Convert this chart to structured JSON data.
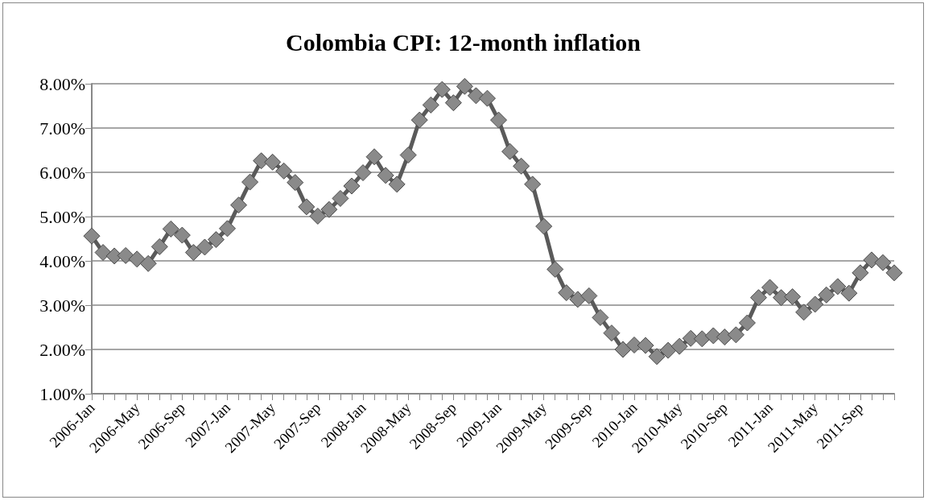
{
  "chart_data": {
    "type": "line",
    "title": "Colombia CPI: 12-month inflation",
    "categories": [
      "2006-Jan",
      null,
      null,
      null,
      "2006-May",
      null,
      null,
      null,
      "2006-Sep",
      null,
      null,
      null,
      "2007-Jan",
      null,
      null,
      null,
      "2007-May",
      null,
      null,
      null,
      "2007-Sep",
      null,
      null,
      null,
      "2008-Jan",
      null,
      null,
      null,
      "2008-May",
      null,
      null,
      null,
      "2008-Sep",
      null,
      null,
      null,
      "2009-Jan",
      null,
      null,
      null,
      "2009-May",
      null,
      null,
      null,
      "2009-Sep",
      null,
      null,
      null,
      "2010-Jan",
      null,
      null,
      null,
      "2010-May",
      null,
      null,
      null,
      "2010-Sep",
      null,
      null,
      null,
      "2011-Jan",
      null,
      null,
      null,
      "2011-May",
      null,
      null,
      null,
      "2011-Sep",
      null,
      null,
      null
    ],
    "series": [
      {
        "color": "#5a5a5a",
        "values": [
          4.56,
          4.19,
          4.11,
          4.12,
          4.04,
          3.94,
          4.32,
          4.72,
          4.58,
          4.19,
          4.31,
          4.48,
          4.73,
          5.26,
          5.78,
          6.26,
          6.23,
          6.03,
          5.77,
          5.22,
          5.01,
          5.16,
          5.41,
          5.69,
          5.99,
          6.35,
          5.93,
          5.73,
          6.39,
          7.18,
          7.52,
          7.87,
          7.57,
          7.94,
          7.73,
          7.67,
          7.18,
          6.47,
          6.14,
          5.73,
          4.78,
          3.81,
          3.28,
          3.13,
          3.21,
          2.72,
          2.37,
          2.0,
          2.1,
          2.09,
          1.84,
          1.98,
          2.07,
          2.25,
          2.24,
          2.31,
          2.28,
          2.33,
          2.6,
          3.17,
          3.4,
          3.17,
          3.19,
          2.84,
          3.02,
          3.23,
          3.42,
          3.27,
          3.73,
          4.02,
          3.96,
          3.73
        ]
      }
    ],
    "ylim": [
      1,
      8
    ],
    "yticks": [
      {
        "value": 1,
        "label": "1.00%"
      },
      {
        "value": 2,
        "label": "2.00%"
      },
      {
        "value": 3,
        "label": "3.00%"
      },
      {
        "value": 4,
        "label": "4.00%"
      },
      {
        "value": 5,
        "label": "5.00%"
      },
      {
        "value": 6,
        "label": "6.00%"
      },
      {
        "value": 7,
        "label": "7.00%"
      },
      {
        "value": 8,
        "label": "8.00%"
      }
    ],
    "grid": "y",
    "marker": "diamond",
    "line_style": "solid"
  }
}
